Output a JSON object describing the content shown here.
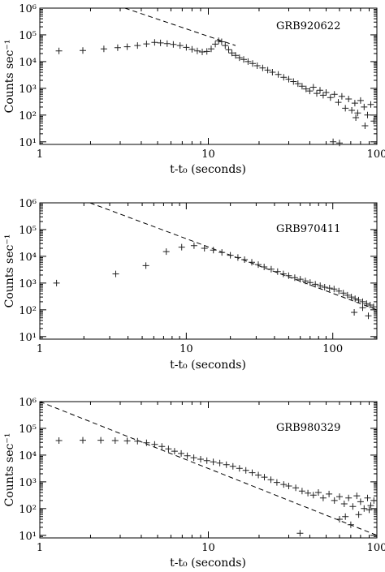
{
  "chart_data": [
    {
      "type": "scatter",
      "title": "GRB920622",
      "xlabel": "t-t₀ (seconds)",
      "ylabel": "Counts sec⁻¹",
      "xscale": "log",
      "yscale": "log",
      "xlim": [
        1,
        100
      ],
      "ylim": [
        8,
        1000000
      ],
      "x_ticks": [
        "1",
        "10",
        "100"
      ],
      "y_ticks": [
        "10¹",
        "10²",
        "10³",
        "10⁴",
        "10⁵",
        "10⁶"
      ],
      "x_ticks_values": [
        1,
        10,
        100
      ],
      "y_ticks_values": [
        10,
        100,
        1000,
        10000,
        100000,
        1000000
      ],
      "fit_line": {
        "style": "dashed",
        "points": [
          [
            3.2,
            1000000
          ],
          [
            14.5,
            40000
          ]
        ]
      },
      "series": [
        {
          "points": [
            [
              1.3,
              25000
            ],
            [
              1.8,
              26000
            ],
            [
              2.4,
              30000
            ],
            [
              2.9,
              33000
            ],
            [
              3.3,
              36000
            ],
            [
              3.8,
              40000
            ],
            [
              4.3,
              46000
            ],
            [
              4.8,
              52000
            ],
            [
              5.2,
              50000
            ],
            [
              5.7,
              47000
            ],
            [
              6.2,
              44000
            ],
            [
              6.8,
              40000
            ],
            [
              7.4,
              34000
            ],
            [
              8.0,
              29000
            ],
            [
              8.6,
              25000
            ],
            [
              9.2,
              23000
            ],
            [
              9.8,
              24000
            ],
            [
              10.4,
              30000
            ],
            [
              11.0,
              45000
            ],
            [
              11.5,
              60000
            ],
            [
              12.0,
              55000
            ],
            [
              12.6,
              40000
            ],
            [
              13.2,
              28000
            ],
            [
              13.8,
              21000
            ],
            [
              14.5,
              17000
            ],
            [
              15.3,
              14000
            ],
            [
              16.2,
              12000
            ],
            [
              17.2,
              10000
            ],
            [
              18.3,
              8500
            ],
            [
              19.5,
              7000
            ],
            [
              21.0,
              5800
            ],
            [
              22.5,
              4800
            ],
            [
              24.0,
              4000
            ],
            [
              26.0,
              3300
            ],
            [
              28.0,
              2600
            ],
            [
              30.0,
              2200
            ],
            [
              32.0,
              1800
            ],
            [
              34.0,
              1500
            ],
            [
              36.0,
              1200
            ],
            [
              38.0,
              950
            ],
            [
              40.0,
              800
            ],
            [
              42.0,
              1100
            ],
            [
              44.0,
              650
            ],
            [
              46.0,
              850
            ],
            [
              48.0,
              550
            ],
            [
              50.0,
              700
            ],
            [
              53.0,
              450
            ],
            [
              56.0,
              600
            ],
            [
              59.0,
              300
            ],
            [
              62.0,
              500
            ],
            [
              65.0,
              180
            ],
            [
              68.0,
              400
            ],
            [
              71.0,
              150
            ],
            [
              74.0,
              280
            ],
            [
              77.0,
              120
            ],
            [
              80.0,
              350
            ],
            [
              84.0,
              200
            ],
            [
              88.0,
              100
            ],
            [
              92.0,
              250
            ],
            [
              96.0,
              60
            ],
            [
              55.0,
              10
            ],
            [
              60.0,
              9
            ],
            [
              75.0,
              80
            ],
            [
              85.0,
              40
            ]
          ]
        }
      ]
    },
    {
      "type": "scatter",
      "title": "GRB970411",
      "xlabel": "t-t₀ (seconds)",
      "ylabel": "Counts sec⁻¹",
      "xscale": "log",
      "yscale": "log",
      "xlim": [
        1,
        200
      ],
      "ylim": [
        8,
        1000000
      ],
      "x_ticks": [
        "1",
        "10",
        "100"
      ],
      "y_ticks": [
        "10¹",
        "10²",
        "10³",
        "10⁴",
        "10⁵",
        "10⁶"
      ],
      "x_ticks_values": [
        1,
        10,
        100
      ],
      "y_ticks_values": [
        10,
        100,
        1000,
        10000,
        100000,
        1000000
      ],
      "fit_line": {
        "style": "dashed",
        "points": [
          [
            2.2,
            1000000
          ],
          [
            200,
            100
          ]
        ]
      },
      "series": [
        {
          "points": [
            [
              1.3,
              1000
            ],
            [
              3.3,
              2200
            ],
            [
              5.3,
              4500
            ],
            [
              7.3,
              15000
            ],
            [
              9.3,
              22000
            ],
            [
              11.3,
              25000
            ],
            [
              13.3,
              20000
            ],
            [
              15.3,
              17000
            ],
            [
              17.5,
              14000
            ],
            [
              20.0,
              11000
            ],
            [
              22.5,
              9000
            ],
            [
              25.0,
              7500
            ],
            [
              28.0,
              6000
            ],
            [
              31.0,
              4900
            ],
            [
              34.0,
              4000
            ],
            [
              38.0,
              3300
            ],
            [
              42.0,
              2700
            ],
            [
              46.0,
              2200
            ],
            [
              50.0,
              1900
            ],
            [
              55.0,
              1600
            ],
            [
              60.0,
              1400
            ],
            [
              65.0,
              1200
            ],
            [
              70.0,
              1050
            ],
            [
              76.0,
              900
            ],
            [
              82.0,
              800
            ],
            [
              88.0,
              700
            ],
            [
              95.0,
              650
            ],
            [
              102.0,
              600
            ],
            [
              110.0,
              500
            ],
            [
              118.0,
              420
            ],
            [
              126.0,
              350
            ],
            [
              134.0,
              300
            ],
            [
              142.0,
              260
            ],
            [
              150.0,
              230
            ],
            [
              160.0,
              200
            ],
            [
              170.0,
              170
            ],
            [
              180.0,
              150
            ],
            [
              190.0,
              130
            ],
            [
              140.0,
              80
            ],
            [
              160.0,
              120
            ],
            [
              175.0,
              60
            ]
          ]
        }
      ]
    },
    {
      "type": "scatter",
      "title": "GRB980329",
      "xlabel": "t-t₀ (seconds)",
      "ylabel": "Counts sec⁻¹",
      "xscale": "log",
      "yscale": "log",
      "xlim": [
        1,
        100
      ],
      "ylim": [
        8,
        1000000
      ],
      "x_ticks": [
        "1",
        "10",
        "100"
      ],
      "y_ticks": [
        "10¹",
        "10²",
        "10³",
        "10⁴",
        "10⁵",
        "10⁶"
      ],
      "x_ticks_values": [
        1,
        10,
        100
      ],
      "y_ticks_values": [
        10,
        100,
        1000,
        10000,
        100000,
        1000000
      ],
      "fit_line": {
        "style": "dashed",
        "points": [
          [
            1.0,
            1000000
          ],
          [
            100,
            10
          ]
        ]
      },
      "series": [
        {
          "points": [
            [
              1.3,
              35000
            ],
            [
              1.8,
              36000
            ],
            [
              2.3,
              36000
            ],
            [
              2.8,
              35000
            ],
            [
              3.3,
              34000
            ],
            [
              3.8,
              33000
            ],
            [
              4.3,
              29000
            ],
            [
              4.8,
              25000
            ],
            [
              5.3,
              21000
            ],
            [
              5.8,
              17000
            ],
            [
              6.3,
              14000
            ],
            [
              6.9,
              11500
            ],
            [
              7.5,
              9500
            ],
            [
              8.2,
              8000
            ],
            [
              9.0,
              7000
            ],
            [
              9.8,
              6200
            ],
            [
              10.7,
              5600
            ],
            [
              11.7,
              5000
            ],
            [
              12.8,
              4400
            ],
            [
              14.0,
              3800
            ],
            [
              15.3,
              3200
            ],
            [
              16.7,
              2700
            ],
            [
              18.2,
              2200
            ],
            [
              19.8,
              1800
            ],
            [
              21.5,
              1500
            ],
            [
              23.5,
              1200
            ],
            [
              25.5,
              950
            ],
            [
              28.0,
              800
            ],
            [
              30.0,
              700
            ],
            [
              33.0,
              600
            ],
            [
              36.0,
              450
            ],
            [
              39.0,
              380
            ],
            [
              42.0,
              320
            ],
            [
              45.0,
              400
            ],
            [
              48.0,
              250
            ],
            [
              52.0,
              350
            ],
            [
              56.0,
              200
            ],
            [
              60.0,
              280
            ],
            [
              64.0,
              150
            ],
            [
              68.0,
              250
            ],
            [
              72.0,
              120
            ],
            [
              76.0,
              300
            ],
            [
              80.0,
              180
            ],
            [
              84.0,
              100
            ],
            [
              88.0,
              250
            ],
            [
              92.0,
              130
            ],
            [
              96.0,
              200
            ],
            [
              60.0,
              40
            ],
            [
              70.0,
              25
            ],
            [
              78.0,
              60
            ],
            [
              90.0,
              90
            ],
            [
              35.0,
              12
            ],
            [
              65.0,
              50
            ]
          ]
        }
      ]
    }
  ]
}
